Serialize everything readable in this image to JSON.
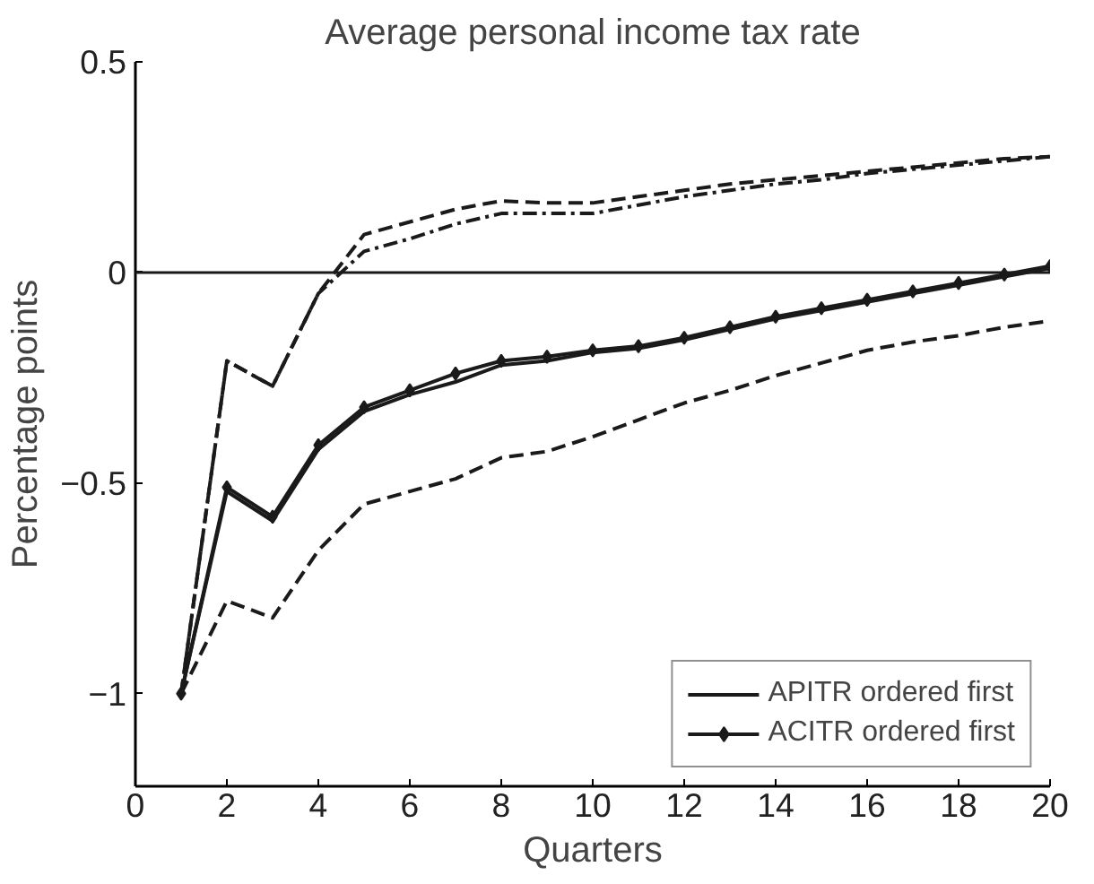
{
  "chart_data": {
    "type": "line",
    "title": "Average personal income tax rate",
    "xlabel": "Quarters",
    "ylabel": "Percentage points",
    "x": [
      1,
      2,
      3,
      4,
      5,
      6,
      7,
      8,
      9,
      10,
      11,
      12,
      13,
      14,
      15,
      16,
      17,
      18,
      19,
      20
    ],
    "series": [
      {
        "name": "APITR ordered first",
        "color": "#1a1a1a",
        "line_style": "solid",
        "marker": "none",
        "values": [
          -1.0,
          -0.52,
          -0.59,
          -0.42,
          -0.33,
          -0.29,
          -0.26,
          -0.22,
          -0.21,
          -0.19,
          -0.18,
          -0.16,
          -0.135,
          -0.11,
          -0.09,
          -0.07,
          -0.05,
          -0.03,
          -0.01,
          0.01
        ]
      },
      {
        "name": "ACITR ordered first",
        "color": "#1a1a1a",
        "line_style": "solid",
        "marker": "diamond",
        "values": [
          -1.0,
          -0.51,
          -0.58,
          -0.41,
          -0.32,
          -0.28,
          -0.24,
          -0.21,
          -0.2,
          -0.185,
          -0.175,
          -0.155,
          -0.13,
          -0.105,
          -0.085,
          -0.065,
          -0.045,
          -0.025,
          -0.005,
          0.015
        ]
      },
      {
        "color": "#1a1a1a",
        "line_style": "dashed",
        "marker": "none",
        "values": [
          -1.0,
          -0.21,
          -0.27,
          -0.05,
          0.09,
          0.12,
          0.15,
          0.17,
          0.165,
          0.165,
          0.18,
          0.195,
          0.21,
          0.22,
          0.23,
          0.24,
          0.25,
          0.26,
          0.27,
          0.275
        ]
      },
      {
        "color": "#1a1a1a",
        "line_style": "dotted",
        "marker": "none",
        "values": [
          -1.0,
          -0.21,
          -0.27,
          -0.05,
          0.05,
          0.08,
          0.115,
          0.14,
          0.14,
          0.14,
          0.16,
          0.18,
          0.195,
          0.21,
          0.22,
          0.235,
          0.245,
          0.255,
          0.265,
          0.275
        ]
      },
      {
        "color": "#1a1a1a",
        "line_style": "dashed",
        "marker": "none",
        "values": [
          -1.0,
          -0.78,
          -0.82,
          -0.66,
          -0.55,
          -0.52,
          -0.49,
          -0.44,
          -0.425,
          -0.39,
          -0.35,
          -0.31,
          -0.28,
          -0.245,
          -0.215,
          -0.185,
          -0.165,
          -0.15,
          -0.13,
          -0.115
        ]
      }
    ],
    "xlim": [
      0,
      20
    ],
    "xticks": [
      0,
      2,
      4,
      6,
      8,
      10,
      12,
      14,
      16,
      18,
      20
    ],
    "ylim": [
      -1.22,
      0.5
    ],
    "yticks": [
      {
        "value": -1,
        "label": "−1"
      },
      {
        "value": -0.5,
        "label": "−0.5"
      },
      0,
      0.5
    ],
    "ref_lines": [
      {
        "axis": "y",
        "value": 0,
        "color": "#1a1a1a",
        "line_style": "solid"
      }
    ],
    "grid": false,
    "legend": "bottom right"
  }
}
